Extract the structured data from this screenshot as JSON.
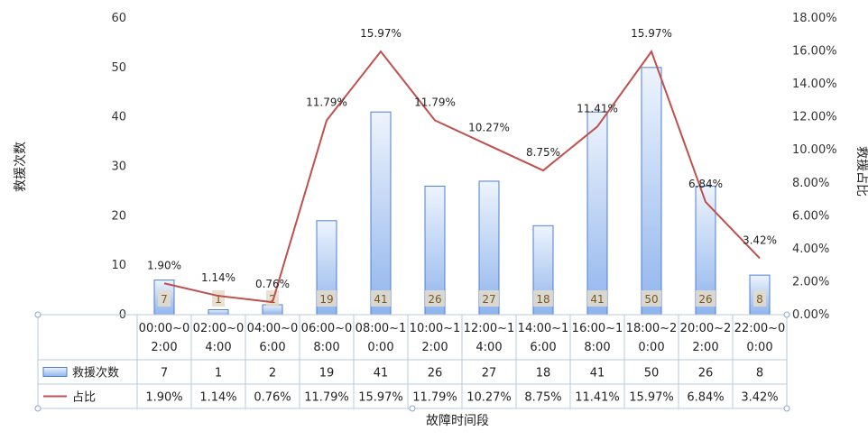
{
  "chart_data": {
    "type": "bar",
    "categories": [
      [
        "00:00~0",
        "2:00"
      ],
      [
        "02:00~0",
        "4:00"
      ],
      [
        "04:00~0",
        "6:00"
      ],
      [
        "06:00~0",
        "8:00"
      ],
      [
        "08:00~1",
        "0:00"
      ],
      [
        "10:00~1",
        "2:00"
      ],
      [
        "12:00~1",
        "4:00"
      ],
      [
        "14:00~1",
        "6:00"
      ],
      [
        "16:00~1",
        "8:00"
      ],
      [
        "18:00~2",
        "0:00"
      ],
      [
        "20:00~2",
        "2:00"
      ],
      [
        "22:00~0",
        "0:00"
      ]
    ],
    "series": [
      {
        "name": "救援次数",
        "type": "bar",
        "axis": "left",
        "color": "#8fb4ec",
        "values": [
          7,
          1,
          2,
          19,
          41,
          26,
          27,
          18,
          41,
          50,
          26,
          8
        ],
        "labels": [
          "7",
          "1",
          "2",
          "19",
          "41",
          "26",
          "27",
          "18",
          "41",
          "50",
          "26",
          "8"
        ]
      },
      {
        "name": "占比",
        "type": "line",
        "axis": "right",
        "color": "#c0504d",
        "values": [
          1.9,
          1.14,
          0.76,
          11.79,
          15.97,
          11.79,
          10.27,
          8.75,
          11.41,
          15.97,
          6.84,
          3.42
        ],
        "labels": [
          "1.90%",
          "1.14%",
          "0.76%",
          "11.79%",
          "15.97%",
          "11.79%",
          "10.27%",
          "8.75%",
          "11.41%",
          "15.97%",
          "6.84%",
          "3.42%"
        ]
      }
    ],
    "xlabel": "故障时间段",
    "ylabel": "救援次数",
    "y2label": "救援占比",
    "ylim": [
      0,
      60
    ],
    "yticks": [
      "0",
      "10",
      "20",
      "30",
      "40",
      "50",
      "60"
    ],
    "y2lim": [
      0,
      18
    ],
    "y2ticks": [
      "0.00%",
      "2.00%",
      "4.00%",
      "6.00%",
      "8.00%",
      "10.00%",
      "12.00%",
      "14.00%",
      "16.00%",
      "18.00%"
    ],
    "grid": false,
    "legend": "data-table",
    "data_table": true
  }
}
